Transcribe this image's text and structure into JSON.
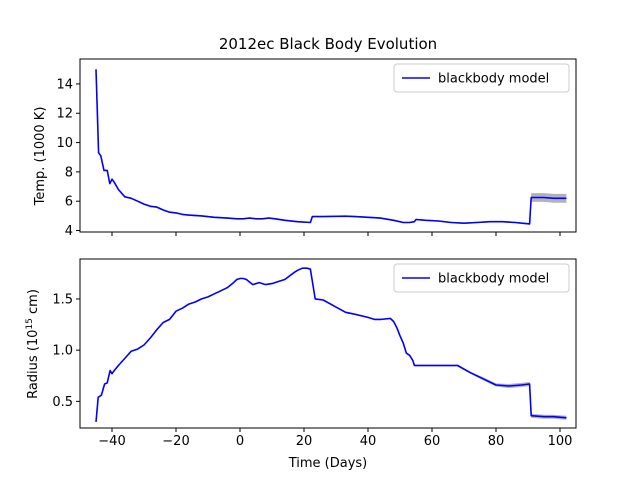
{
  "chart_data": [
    {
      "type": "line",
      "title": "2012ec Black Body Evolution",
      "xlabel": "",
      "ylabel": "Temp. (1000 K)",
      "xlim": [
        -50,
        105
      ],
      "ylim": [
        3.9,
        15.7
      ],
      "xticks": [
        -40,
        -20,
        0,
        20,
        40,
        60,
        80,
        100
      ],
      "xtick_labels_visible": false,
      "yticks": [
        4,
        6,
        8,
        10,
        12,
        14
      ],
      "ytick_labels": [
        "4",
        "6",
        "8",
        "10",
        "12",
        "14"
      ],
      "legend": "top-right",
      "grid": false,
      "series": [
        {
          "name": "blackbody model",
          "color": "#0000ff",
          "uncertainty_color": "#808080",
          "x": [
            -45,
            -44.2,
            -43.5,
            -42.5,
            -41.5,
            -40.7,
            -40,
            -39.3,
            -38,
            -36,
            -34,
            -32,
            -30,
            -28,
            -26,
            -24,
            -22,
            -20,
            -18,
            -16,
            -12,
            -8,
            -4,
            -1,
            1,
            3,
            5,
            7,
            9,
            11,
            14,
            18,
            22,
            22.6,
            26,
            33,
            36,
            40,
            44,
            48,
            51,
            53,
            54.5,
            55,
            58,
            62,
            66,
            70,
            74,
            78,
            82,
            86,
            90.5,
            91,
            95,
            98,
            102
          ],
          "y": [
            15.0,
            9.3,
            9.1,
            8.1,
            8.1,
            7.2,
            7.5,
            7.3,
            6.8,
            6.3,
            6.2,
            6.0,
            5.8,
            5.65,
            5.6,
            5.4,
            5.25,
            5.2,
            5.1,
            5.05,
            5.0,
            4.9,
            4.85,
            4.8,
            4.8,
            4.85,
            4.8,
            4.8,
            4.85,
            4.8,
            4.7,
            4.6,
            4.55,
            4.95,
            4.95,
            4.98,
            4.95,
            4.9,
            4.85,
            4.7,
            4.55,
            4.55,
            4.6,
            4.75,
            4.7,
            4.65,
            4.55,
            4.5,
            4.55,
            4.6,
            4.6,
            4.55,
            4.45,
            6.25,
            6.25,
            6.2,
            6.2
          ],
          "err": [
            0.05,
            0.05,
            0.05,
            0.05,
            0.05,
            0.05,
            0.05,
            0.05,
            0.05,
            0.05,
            0.05,
            0.05,
            0.05,
            0.05,
            0.05,
            0.05,
            0.05,
            0.05,
            0.05,
            0.05,
            0.05,
            0.05,
            0.05,
            0.05,
            0.05,
            0.05,
            0.05,
            0.05,
            0.05,
            0.05,
            0.05,
            0.05,
            0.05,
            0.05,
            0.05,
            0.05,
            0.05,
            0.05,
            0.05,
            0.05,
            0.05,
            0.05,
            0.05,
            0.05,
            0.05,
            0.05,
            0.05,
            0.05,
            0.05,
            0.05,
            0.05,
            0.05,
            0.05,
            0.3,
            0.3,
            0.3,
            0.3
          ]
        }
      ]
    },
    {
      "type": "line",
      "title": "",
      "xlabel": "Time (Days)",
      "ylabel_main": "Radius (10",
      "ylabel_sup": "15",
      "ylabel_tail": " cm)",
      "xlim": [
        -50,
        105
      ],
      "ylim": [
        0.24,
        1.89
      ],
      "xticks": [
        -40,
        -20,
        0,
        20,
        40,
        60,
        80,
        100
      ],
      "xtick_labels": [
        "−40",
        "−20",
        "0",
        "20",
        "40",
        "60",
        "80",
        "100"
      ],
      "yticks": [
        0.5,
        1.0,
        1.5
      ],
      "ytick_labels": [
        "0.5",
        "1.0",
        "1.5"
      ],
      "legend": "top-right",
      "grid": false,
      "series": [
        {
          "name": "blackbody model",
          "color": "#0000ff",
          "uncertainty_color": "#808080",
          "x": [
            -45,
            -44.3,
            -43.3,
            -42.3,
            -41.5,
            -40.6,
            -40,
            -39.3,
            -38,
            -36,
            -34,
            -32,
            -30,
            -28,
            -26,
            -24,
            -22,
            -20,
            -18,
            -16,
            -14,
            -12,
            -10,
            -8,
            -6,
            -4,
            -2,
            -1,
            0,
            1,
            2,
            4,
            6,
            8,
            10,
            12,
            14,
            17,
            18,
            19.5,
            21,
            22,
            23.5,
            26,
            30,
            33,
            36,
            40,
            42,
            44,
            47,
            48,
            49,
            50,
            51,
            52,
            53,
            54,
            54.5,
            55,
            58,
            62,
            66,
            68,
            72,
            76,
            80,
            84,
            88,
            90.5,
            91,
            95,
            98,
            102
          ],
          "y": [
            0.3,
            0.54,
            0.56,
            0.67,
            0.68,
            0.8,
            0.77,
            0.8,
            0.85,
            0.92,
            0.99,
            1.01,
            1.05,
            1.12,
            1.2,
            1.27,
            1.3,
            1.38,
            1.41,
            1.45,
            1.47,
            1.5,
            1.52,
            1.55,
            1.58,
            1.61,
            1.66,
            1.69,
            1.7,
            1.7,
            1.69,
            1.64,
            1.66,
            1.64,
            1.65,
            1.67,
            1.69,
            1.76,
            1.78,
            1.8,
            1.8,
            1.79,
            1.5,
            1.49,
            1.42,
            1.37,
            1.35,
            1.32,
            1.3,
            1.3,
            1.31,
            1.28,
            1.22,
            1.14,
            1.07,
            0.97,
            0.95,
            0.9,
            0.85,
            0.85,
            0.85,
            0.85,
            0.85,
            0.85,
            0.78,
            0.72,
            0.66,
            0.65,
            0.66,
            0.67,
            0.36,
            0.35,
            0.35,
            0.34
          ],
          "err": [
            0.005,
            0.005,
            0.005,
            0.005,
            0.005,
            0.005,
            0.005,
            0.005,
            0.005,
            0.005,
            0.005,
            0.005,
            0.005,
            0.005,
            0.005,
            0.005,
            0.005,
            0.005,
            0.005,
            0.005,
            0.005,
            0.005,
            0.005,
            0.005,
            0.005,
            0.005,
            0.005,
            0.005,
            0.005,
            0.005,
            0.005,
            0.005,
            0.005,
            0.005,
            0.005,
            0.005,
            0.005,
            0.005,
            0.005,
            0.005,
            0.005,
            0.005,
            0.005,
            0.005,
            0.005,
            0.005,
            0.005,
            0.005,
            0.005,
            0.005,
            0.005,
            0.005,
            0.005,
            0.005,
            0.005,
            0.005,
            0.005,
            0.005,
            0.01,
            0.01,
            0.01,
            0.01,
            0.01,
            0.01,
            0.01,
            0.015,
            0.015,
            0.02,
            0.02,
            0.02,
            0.02,
            0.02,
            0.02,
            0.02
          ]
        }
      ]
    }
  ]
}
